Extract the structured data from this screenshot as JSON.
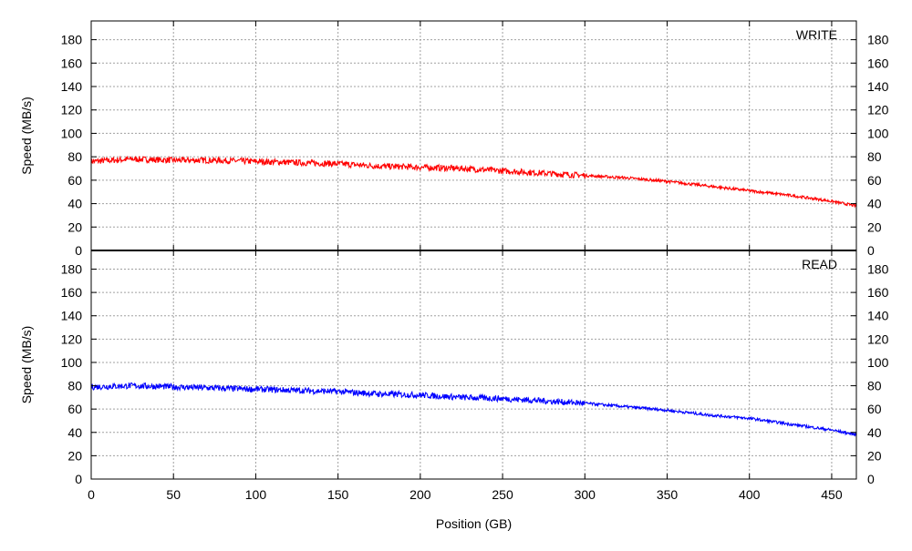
{
  "chart_data": [
    {
      "type": "line",
      "title": "",
      "legend": "WRITE",
      "xlabel": "",
      "ylabel": "Speed (MB/s)",
      "xlim": [
        0,
        465
      ],
      "ylim": [
        0,
        196
      ],
      "x_ticks": [
        0,
        50,
        100,
        150,
        200,
        250,
        300,
        350,
        400,
        450
      ],
      "y_ticks": [
        0,
        20,
        40,
        60,
        80,
        100,
        120,
        140,
        160,
        180
      ],
      "grid": true,
      "color": "#ff0000",
      "series": [
        {
          "x": [
            0,
            25,
            50,
            75,
            100,
            125,
            150,
            175,
            200,
            225,
            250,
            275,
            300,
            325,
            350,
            375,
            400,
            425,
            450,
            465
          ],
          "values": [
            76,
            78,
            77,
            77,
            76,
            75,
            74,
            72,
            71,
            70,
            68,
            66,
            64,
            62,
            59,
            55,
            51,
            47,
            42,
            38
          ]
        }
      ]
    },
    {
      "type": "line",
      "title": "",
      "legend": "READ",
      "xlabel": "Position (GB)",
      "ylabel": "Speed (MB/s)",
      "xlim": [
        0,
        465
      ],
      "ylim": [
        0,
        196
      ],
      "x_ticks": [
        0,
        50,
        100,
        150,
        200,
        250,
        300,
        350,
        400,
        450
      ],
      "y_ticks": [
        0,
        20,
        40,
        60,
        80,
        100,
        120,
        140,
        160,
        180
      ],
      "grid": true,
      "color": "#0000ff",
      "series": [
        {
          "x": [
            0,
            25,
            50,
            75,
            100,
            125,
            150,
            175,
            200,
            225,
            250,
            275,
            300,
            325,
            350,
            375,
            400,
            425,
            450,
            465
          ],
          "values": [
            79,
            80,
            79,
            78,
            77,
            76,
            75,
            73,
            72,
            70,
            69,
            67,
            65,
            62,
            59,
            55,
            52,
            47,
            42,
            38
          ]
        }
      ]
    }
  ]
}
